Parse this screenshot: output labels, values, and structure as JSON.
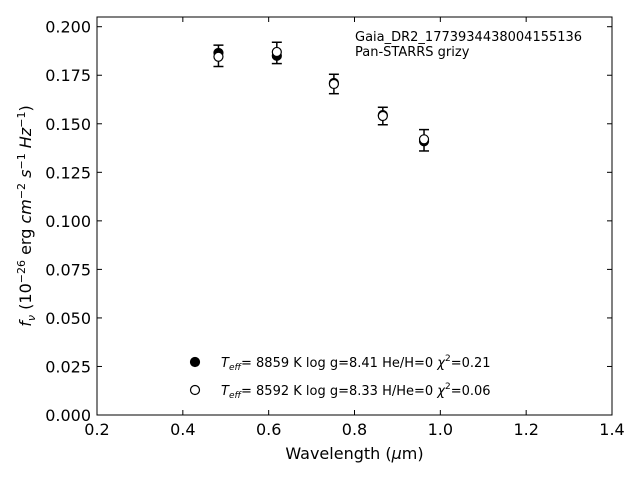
{
  "chart_data": {
    "type": "scatter",
    "xlabel": "Wavelength (μm)",
    "ylabel": "f_ν (10^-26 erg cm^-2 s^-1 Hz^-1)",
    "xlim": [
      0.2,
      1.4
    ],
    "ylim": [
      0.0,
      0.205
    ],
    "xticks": [
      "0.2",
      "0.4",
      "0.6",
      "0.8",
      "1.0",
      "1.2",
      "1.4"
    ],
    "yticks": [
      "0.000",
      "0.025",
      "0.050",
      "0.075",
      "0.100",
      "0.125",
      "0.150",
      "0.175",
      "0.200"
    ],
    "grid": false,
    "legend_position": "bottom-center",
    "annotation": [
      "Gaia_DR2_1773934438004155136",
      "Pan-STARRS grizy"
    ],
    "observed": {
      "x": [
        0.483,
        0.619,
        0.752,
        0.866,
        0.962
      ],
      "y": [
        0.185,
        0.1865,
        0.1705,
        0.154,
        0.1415
      ],
      "yerr": [
        0.0055,
        0.0055,
        0.005,
        0.0045,
        0.0055
      ]
    },
    "series": [
      {
        "name": "T_eff= 8859 K log g=8.41 He/H=0 χ²=0.21",
        "marker": "filled",
        "x": [
          0.483,
          0.619,
          0.752,
          0.866,
          0.962
        ],
        "y": [
          0.1865,
          0.185,
          0.171,
          0.1545,
          0.141
        ]
      },
      {
        "name": "T_eff= 8592 K log g=8.33 H/He=0 χ²=0.06",
        "marker": "open",
        "x": [
          0.483,
          0.619,
          0.752,
          0.866,
          0.962
        ],
        "y": [
          0.1845,
          0.187,
          0.1705,
          0.154,
          0.142
        ]
      }
    ],
    "legend": [
      {
        "teff": "8859 K",
        "logg": "log g=8.41",
        "comp": "He/H=0",
        "chi2": "=0.21"
      },
      {
        "teff": "8592 K",
        "logg": "log g=8.33",
        "comp": "H/He=0",
        "chi2": "=0.06"
      }
    ]
  }
}
